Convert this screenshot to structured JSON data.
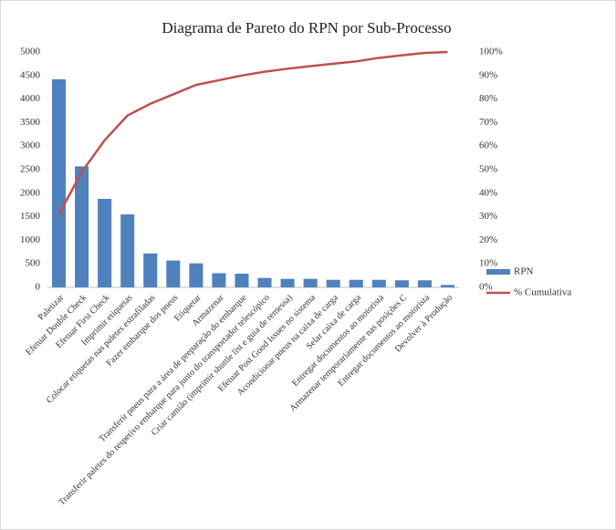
{
  "chart_data": {
    "type": "bar",
    "title": "Diagrama  de Pareto do RPN por Sub-Processo",
    "categories": [
      "Paletizar",
      "Efetuar Double Check",
      "Efetuar First Check",
      "Imprimir etiquetas",
      "Colocar etiquetas nas paletes estrafiladas",
      "Fazer embarque dos pneus",
      "Etiquetar",
      "Armazenar",
      "Transferir pneus para a área de preparação do embarque",
      "Transferir paletes do respetivo embarque para junto do transportador telescópico",
      "Criar camião (imprimir shuttle list e guia de remessa)",
      "Efetuar Post Good Issues no sistema",
      "Acondicionar pneus na caixa de carga",
      "Selar caixa de carga",
      "Entregar documentos ao motorista",
      "Armazenar temporariamente nas posições C",
      "Entregar documentos ao motorista",
      "Devolver à Produção"
    ],
    "series": [
      {
        "name": "RPN",
        "type": "bar",
        "color": "#4f81bd",
        "values": [
          4420,
          2570,
          1880,
          1550,
          720,
          570,
          510,
          300,
          290,
          200,
          180,
          180,
          160,
          160,
          160,
          150,
          150,
          50
        ]
      },
      {
        "name": "% Cumulativa",
        "type": "line",
        "axis": "y2",
        "color": "#c0504d",
        "values": [
          31,
          49,
          62.5,
          73,
          78,
          82,
          86,
          88,
          90,
          91.6,
          92.9,
          94,
          95,
          96,
          97.5,
          98.6,
          99.6,
          100
        ]
      }
    ],
    "ylim": [
      0,
      5000
    ],
    "yticks": [
      0,
      500,
      1000,
      1500,
      2000,
      2500,
      3000,
      3500,
      4000,
      4500,
      5000
    ],
    "y2lim": [
      0,
      100
    ],
    "y2ticks": [
      {
        "value": 0,
        "label": "0%"
      },
      {
        "value": 10,
        "label": "10%"
      },
      {
        "value": 20,
        "label": "20%"
      },
      {
        "value": 30,
        "label": "30%"
      },
      {
        "value": 40,
        "label": "40%"
      },
      {
        "value": 50,
        "label": "50%"
      },
      {
        "value": 60,
        "label": "60%"
      },
      {
        "value": 70,
        "label": "70%"
      },
      {
        "value": 80,
        "label": "80%"
      },
      {
        "value": 90,
        "label": "90%"
      },
      {
        "value": 100,
        "label": "100%"
      }
    ],
    "legend": "right"
  }
}
